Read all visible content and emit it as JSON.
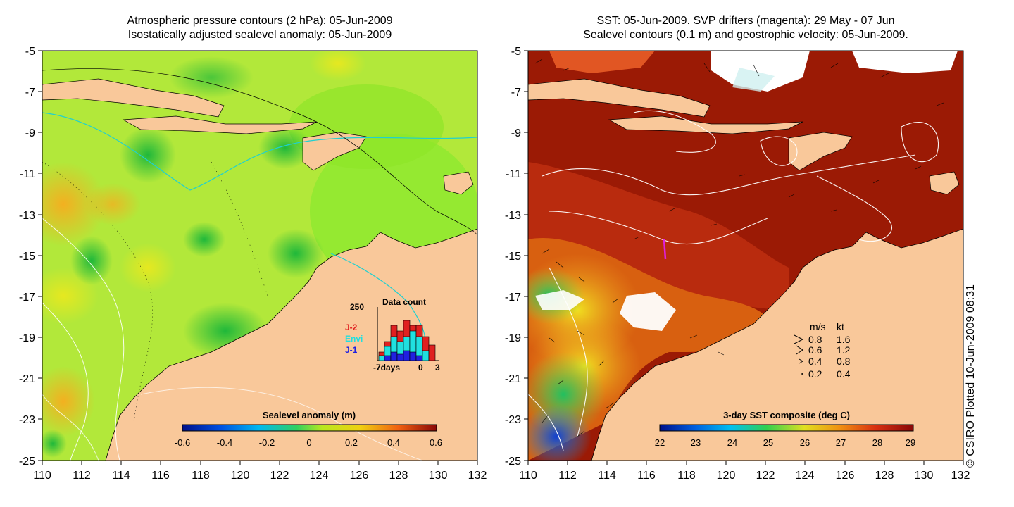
{
  "left_panel": {
    "title_line1": "Atmospheric pressure contours (2 hPa): 05-Jun-2009",
    "title_line2": "Isostatically adjusted sealevel anomaly: 05-Jun-2009",
    "y_ticks": [
      "-5",
      "-7",
      "-9",
      "-11",
      "-13",
      "-15",
      "-17",
      "-19",
      "-21",
      "-23",
      "-25"
    ],
    "x_ticks": [
      "110",
      "112",
      "114",
      "116",
      "118",
      "120",
      "122",
      "124",
      "126",
      "128",
      "130",
      "132"
    ],
    "colorbar_title": "Sealevel anomaly (m)",
    "colorbar_ticks": [
      "-0.6",
      "-0.4",
      "-0.2",
      "0",
      "0.2",
      "0.4",
      "0.6"
    ],
    "data_count": {
      "title": "Data count",
      "ymax_label": "250",
      "x_labels": [
        "-7days",
        "0",
        "3"
      ],
      "legend": [
        {
          "label": "J-2",
          "color": "#e02020"
        },
        {
          "label": "Envi",
          "color": "#20e0e0"
        },
        {
          "label": "J-1",
          "color": "#2020e0"
        }
      ]
    }
  },
  "right_panel": {
    "title_line1": "SST: 05-Jun-2009. SVP drifters (magenta): 29 May - 07 Jun",
    "title_line2": "Sealevel contours (0.1 m) and geostrophic velocity: 05-Jun-2009.",
    "y_ticks": [
      "-5",
      "-7",
      "-9",
      "-11",
      "-13",
      "-15",
      "-17",
      "-19",
      "-21",
      "-23",
      "-25"
    ],
    "x_ticks": [
      "110",
      "112",
      "114",
      "116",
      "118",
      "120",
      "122",
      "124",
      "126",
      "128",
      "130",
      "132"
    ],
    "colorbar_title": "3-day SST composite (deg C)",
    "colorbar_ticks": [
      "22",
      "23",
      "24",
      "25",
      "26",
      "27",
      "28",
      "29"
    ],
    "velocity_legend": {
      "header_ms": "m/s",
      "header_kt": "kt",
      "rows": [
        {
          "ms": "0.8",
          "kt": "1.6"
        },
        {
          "ms": "0.6",
          "kt": "1.2"
        },
        {
          "ms": "0.4",
          "kt": "0.8"
        },
        {
          "ms": "0.2",
          "kt": "0.4"
        }
      ]
    }
  },
  "credit": "© CSIRO Plotted 10-Jun-2009 08:31",
  "colors": {
    "land": "#f9c89a",
    "sst_warm": "#9b1a05",
    "drifter": "#e020e0",
    "anomaly_base": "#a8e83a"
  }
}
